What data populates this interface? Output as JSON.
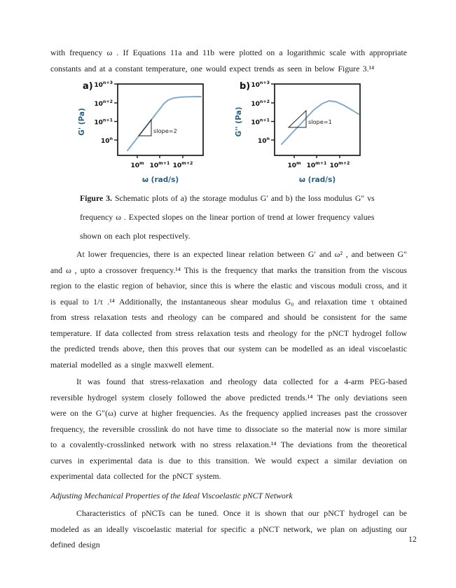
{
  "page": {
    "number": "12"
  },
  "paragraphs": {
    "p1": "with frequency ω . If Equations 11a and 11b were plotted on a logarithmic scale with appropriate constants and at a constant temperature, one would expect trends as seen in below Figure 3.¹⁴",
    "p2": "At lower frequencies, there is an expected linear relation between G′ and ω² , and between G″ and ω , upto a crossover frequency.¹⁴ This is the frequency that marks the transition from the viscous region to the elastic region of behavior, since this is where the elastic and viscous moduli cross, and it is equal to 1/τ .¹⁴ Additionally, the instantaneous shear modulus G₀ and relaxation time τ obtained from stress relaxation tests and rheology can be compared and should be consistent for the same temperature. If data collected from stress relaxation tests and rheology for the pNCT hydrogel follow the predicted trends above, then this proves that our system can be modelled as an ideal viscoelastic material modelled as a single maxwell element.",
    "p3": "It was found that stress-relaxation and rheology data collected for a 4-arm PEG-based reversible hydrogel system closely followed the above predicted trends.¹⁴ The only deviations seen were on the G″(ω) curve at higher frequencies. As the frequency applied increases past the crossover frequency, the reversible crosslink do not have time to dissociate so the material now is more similar to a covalently-crosslinked network with no stress relaxation.¹⁴ The deviations from the theoretical curves in experimental data is due to this transition. We would expect a similar deviation on experimental data collected for the pNCT system.",
    "heading": "Adjusting Mechanical Properties of the Ideal Viscoelastic pNCT Network",
    "p4": "Characteristics of pNCTs can be tuned. Once it is shown that our pNCT hydrogel can be modeled as an ideally viscoelastic material for specific a pNCT network, we plan on adjusting our defined design"
  },
  "caption": {
    "label": "Figure 3.",
    "line1_rest": " Schematic plots of a) the storage modulus G′ and b) the loss modulus G″ vs",
    "line2": "frequency ω . Expected slopes on the linear portion of trend at lower frequency values",
    "line3": "shown on each plot respectively."
  },
  "colors": {
    "curve": "#7FA8CB",
    "axis": "#1a1a1a",
    "axis_label": "#2E5F7F",
    "annotation": "#222222",
    "tick_text": "#111111"
  },
  "chart_data": [
    {
      "id": "a",
      "type": "line",
      "panel_label": "a)",
      "title": "",
      "ylabel": "G' (Pa)",
      "xlabel": "ω (rad/s)",
      "scale": "log-log schematic",
      "yticks": [
        {
          "base": "10",
          "exp": "n+3"
        },
        {
          "base": "10",
          "exp": "n+2"
        },
        {
          "base": "10",
          "exp": "n+1"
        },
        {
          "base": "10",
          "exp": "n"
        }
      ],
      "xticks": [
        {
          "base": "10",
          "exp": "m"
        },
        {
          "base": "10",
          "exp": "m+1"
        },
        {
          "base": "10",
          "exp": "m+2"
        }
      ],
      "annotation": "slope=2",
      "annotation_pos": [
        51,
        70
      ],
      "curve_points": [
        [
          14,
          95
        ],
        [
          66,
          28
        ],
        [
          72,
          23
        ],
        [
          80,
          20
        ],
        [
          92,
          18.6
        ],
        [
          104,
          18.2
        ],
        [
          119,
          18
        ]
      ],
      "triangle": [
        [
          30,
          74
        ],
        [
          48,
          74
        ],
        [
          48,
          51
        ]
      ],
      "description": "Storage modulus rises with slope 2 at low frequency then plateaus just above 10^(n+2)"
    },
    {
      "id": "b",
      "type": "line",
      "panel_label": "b)",
      "title": "",
      "ylabel": "G'' (Pa)",
      "xlabel": "ω (rad/s)",
      "scale": "log-log schematic",
      "yticks": [
        {
          "base": "10",
          "exp": "n+3"
        },
        {
          "base": "10",
          "exp": "n+2"
        },
        {
          "base": "10",
          "exp": "n+1"
        },
        {
          "base": "10",
          "exp": "n"
        }
      ],
      "xticks": [
        {
          "base": "10",
          "exp": "m"
        },
        {
          "base": "10",
          "exp": "m+1"
        },
        {
          "base": "10",
          "exp": "m+2"
        }
      ],
      "annotation": "slope=1",
      "annotation_pos": [
        48,
        57
      ],
      "curve_points": [
        [
          10,
          86
        ],
        [
          56,
          37
        ],
        [
          68,
          28
        ],
        [
          78,
          24
        ],
        [
          88,
          25.5
        ],
        [
          100,
          31
        ],
        [
          120,
          43
        ]
      ],
      "triangle": [
        [
          20,
          62
        ],
        [
          45,
          62
        ],
        [
          45,
          38
        ]
      ],
      "description": "Loss modulus rises with slope 1, peaks just above 10^(n+2) near 10^(m+1), then decreases"
    }
  ]
}
